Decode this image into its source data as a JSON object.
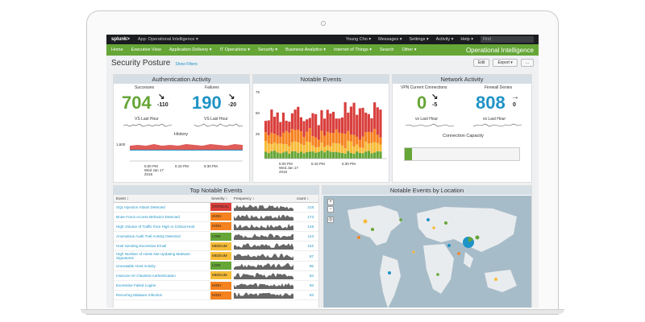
{
  "topbar": {
    "logo": "splunk>",
    "app": "App: Operational Intelligence ▾",
    "user": "Young Cho ▾",
    "messages": "Messages ▾",
    "settings": "Settings ▾",
    "activity": "Activity ▾",
    "help": "Help ▾",
    "find": "Find"
  },
  "nav": {
    "items": [
      "Home",
      "Executive View",
      "Application Delivery ▾",
      "IT Operations ▾",
      "Security ▾",
      "Business Analytics ▾",
      "Internet of Things ▾",
      "Search",
      "Other ▾"
    ],
    "title": "Operational Intelligence"
  },
  "page": {
    "title": "Security Posture",
    "show_filters": "Show Filters",
    "edit": "Edit",
    "export": "Export ▾",
    "more": "..."
  },
  "auth": {
    "title": "Authentication Activity",
    "successes_label": "Successes",
    "successes_value": "704",
    "successes_delta": "-110",
    "successes_arrow": "↘",
    "failures_label": "Failures",
    "failures_value": "190",
    "failures_delta": "-20",
    "failures_arrow": "↘",
    "vs_label": "VS Last Hour",
    "history_label": "History",
    "y_tick": "1,600",
    "x_ticks": [
      "5:00 PM\nWed Jan 17\n2018",
      "5:15 PM",
      "5:30 PM"
    ],
    "x_tick_1_line1": "5:00 PM",
    "x_tick_1_line2": "Wed Jan 17",
    "x_tick_1_line3": "2018",
    "x_tick_2": "5:15 PM",
    "x_tick_3": "5:30 PM"
  },
  "notable": {
    "title": "Notable Events",
    "y_ticks": [
      "75",
      "50",
      "25"
    ],
    "x_tick_1_line1": "5:00 PM",
    "x_tick_1_line2": "Wed Jan 17",
    "x_tick_1_line3": "2018",
    "x_tick_2": "5:15 PM",
    "x_tick_3": "5:30 PM",
    "colors": {
      "critical": "#d93f3c",
      "high": "#f58220",
      "medium": "#f7bc38",
      "low": "#65a637"
    }
  },
  "network": {
    "title": "Network Activity",
    "vpn_label": "VPN Current Connections",
    "vpn_value": "0",
    "vpn_delta": "-5",
    "vpn_arrow": "↘",
    "fw_label": "Firewall Denies",
    "fw_value": "808",
    "fw_delta": "0",
    "fw_arrow": "→",
    "vs_label": "vs Last Hour",
    "capacity_label": "Connection Capacity",
    "capacity_fraction": 0.06
  },
  "top_notable": {
    "title": "Top Notable Events",
    "headers": {
      "event": "Event ↕",
      "severity": "Severity ↕",
      "frequency": "Frequency ↕",
      "count": "count ↕"
    },
    "rows": [
      {
        "event": "SQL Injection Attack Detected",
        "severity": "CRITICAL",
        "count": "218"
      },
      {
        "event": "Brute Force Access Behavior Detected",
        "severity": "HIGH",
        "count": "173"
      },
      {
        "event": "High Volume of Traffic from High or Critical Host",
        "severity": "HIGH",
        "count": "149"
      },
      {
        "event": "Anomalous Audit Trail Activity Detected",
        "severity": "LOW",
        "count": "113"
      },
      {
        "event": "Host Sending Excessive Email",
        "severity": "MEDIUM",
        "count": "102"
      },
      {
        "event": "High Number of Hosts Not Updating Malware Signatures",
        "severity": "MEDIUM",
        "count": "97"
      },
      {
        "event": "Unroutable Host Activity",
        "severity": "LOW",
        "count": "96"
      },
      {
        "event": "Insecure Or Cleartext Authentication",
        "severity": "MEDIUM",
        "count": "94"
      },
      {
        "event": "Excessive Failed Logins",
        "severity": "HIGH",
        "count": "93"
      },
      {
        "event": "Recurring Malware Infection",
        "severity": "HIGH",
        "count": "93"
      }
    ]
  },
  "map": {
    "title": "Notable Events by Location",
    "zoom_in": "+",
    "zoom_out": "−",
    "reset": "◎"
  }
}
